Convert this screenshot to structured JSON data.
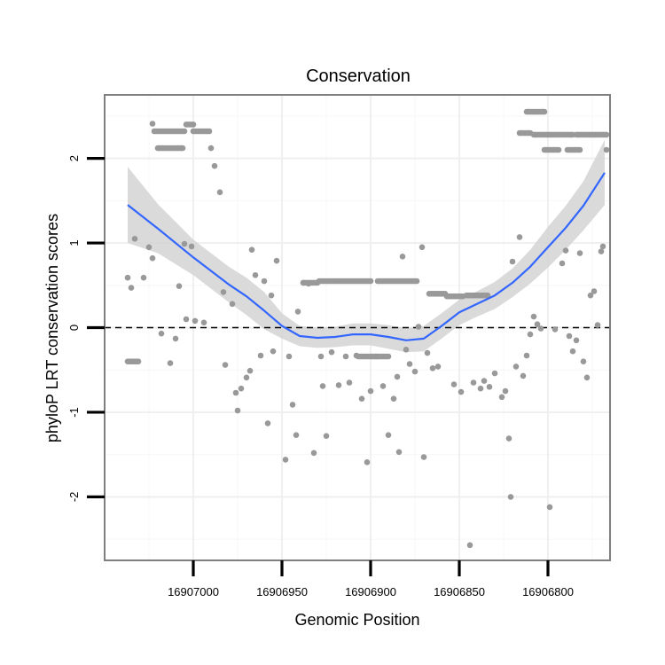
{
  "chart_data": {
    "type": "scatter",
    "title": "Conservation",
    "xlabel": "Genomic Position",
    "ylabel": "phyloP LRT conservation scores",
    "x_reversed": true,
    "xlim": [
      16907050,
      16906765
    ],
    "ylim": [
      -2.75,
      2.75
    ],
    "x_ticks": [
      16907000,
      16906950,
      16906900,
      16906850,
      16906800
    ],
    "x_tick_labels": [
      "16907000",
      "16906950",
      "16906900",
      "16906850",
      "16906800"
    ],
    "y_ticks": [
      -2,
      -1,
      0,
      1,
      2
    ],
    "y_tick_labels": [
      "-2",
      "-1",
      "0",
      "1",
      "2"
    ],
    "reference_line": {
      "y": 0,
      "style": "dashed"
    },
    "colors": {
      "points": "#999999",
      "smooth_line": "#3366ff",
      "ribbon": "#d3d3d3",
      "panel_border": "#7f7f7f",
      "grid": "#f0f0f0"
    },
    "points": [
      [
        16907037,
        0.59
      ],
      [
        16907035,
        0.47
      ],
      [
        16907033,
        1.05
      ],
      [
        16907028,
        0.59
      ],
      [
        16907025,
        0.95
      ],
      [
        16907023,
        0.82
      ],
      [
        16907018,
        -0.07
      ],
      [
        16907013,
        -0.42
      ],
      [
        16907010,
        -0.13
      ],
      [
        16907008,
        0.49
      ],
      [
        16907005,
        0.99
      ],
      [
        16907004,
        0.1
      ],
      [
        16907001,
        0.96
      ],
      [
        16906999,
        0.08
      ],
      [
        16906994,
        0.06
      ],
      [
        16906990,
        2.12
      ],
      [
        16906988,
        1.91
      ],
      [
        16906985,
        1.6
      ],
      [
        16906983,
        0.42
      ],
      [
        16906982,
        -0.44
      ],
      [
        16906978,
        0.28
      ],
      [
        16906976,
        -0.77
      ],
      [
        16906975,
        -0.98
      ],
      [
        16906973,
        -0.72
      ],
      [
        16906970,
        -0.59
      ],
      [
        16906968,
        -0.51
      ],
      [
        16906967,
        0.92
      ],
      [
        16906965,
        0.62
      ],
      [
        16906962,
        -0.33
      ],
      [
        16906960,
        0.55
      ],
      [
        16906958,
        -1.13
      ],
      [
        16906956,
        0.38
      ],
      [
        16906955,
        -0.28
      ],
      [
        16906953,
        0.79
      ],
      [
        16906948,
        -1.56
      ],
      [
        16906946,
        -0.34
      ],
      [
        16906944,
        -0.91
      ],
      [
        16906942,
        -1.27
      ],
      [
        16906941,
        0.19
      ],
      [
        16906938,
        0.53
      ],
      [
        16906935,
        0.52
      ],
      [
        16906932,
        -1.48
      ],
      [
        16906928,
        -0.34
      ],
      [
        16906927,
        -0.69
      ],
      [
        16906925,
        -1.28
      ],
      [
        16906922,
        -0.29
      ],
      [
        16906918,
        -0.68
      ],
      [
        16906914,
        -0.34
      ],
      [
        16906912,
        -0.65
      ],
      [
        16906908,
        -0.33
      ],
      [
        16906905,
        -0.84
      ],
      [
        16906902,
        -1.59
      ],
      [
        16906900,
        -0.75
      ],
      [
        16906897,
        -0.34
      ],
      [
        16906893,
        -0.69
      ],
      [
        16906890,
        -1.27
      ],
      [
        16906887,
        -0.84
      ],
      [
        16906885,
        -0.58
      ],
      [
        16906884,
        -1.47
      ],
      [
        16906882,
        0.84
      ],
      [
        16906880,
        -0.26
      ],
      [
        16906878,
        -0.43
      ],
      [
        16906875,
        -0.52
      ],
      [
        16906873,
        0.01
      ],
      [
        16906871,
        0.95
      ],
      [
        16906870,
        -1.53
      ],
      [
        16906868,
        -0.3
      ],
      [
        16906865,
        -0.48
      ],
      [
        16906862,
        -0.46
      ],
      [
        16906853,
        -0.67
      ],
      [
        16906849,
        -0.76
      ],
      [
        16906844,
        -2.57
      ],
      [
        16906842,
        -0.65
      ],
      [
        16906838,
        -0.72
      ],
      [
        16906836,
        -0.63
      ],
      [
        16906833,
        -0.7
      ],
      [
        16906830,
        -0.54
      ],
      [
        16906826,
        -0.82
      ],
      [
        16906824,
        -0.75
      ],
      [
        16906822,
        -1.31
      ],
      [
        16906821,
        -2.0
      ],
      [
        16906820,
        0.78
      ],
      [
        16906818,
        -0.46
      ],
      [
        16906816,
        1.07
      ],
      [
        16906814,
        -0.57
      ],
      [
        16906812,
        -0.33
      ],
      [
        16906810,
        -0.08
      ],
      [
        16906808,
        0.13
      ],
      [
        16906806,
        0.04
      ],
      [
        16906804,
        -0.01
      ],
      [
        16906799,
        -2.12
      ],
      [
        16906796,
        -0.02
      ],
      [
        16906792,
        0.76
      ],
      [
        16906790,
        0.91
      ],
      [
        16906788,
        -0.1
      ],
      [
        16906786,
        -0.28
      ],
      [
        16906784,
        -0.15
      ],
      [
        16906782,
        0.88
      ],
      [
        16906780,
        -0.4
      ],
      [
        16906778,
        -0.59
      ],
      [
        16906776,
        0.38
      ],
      [
        16906774,
        0.43
      ],
      [
        16906772,
        0.03
      ],
      [
        16906770,
        0.9
      ],
      [
        16906769,
        0.96
      ],
      [
        16906767,
        2.1
      ]
    ],
    "point_runs": [
      {
        "y": 2.41,
        "x_from": 16907023,
        "x_to": 16907023
      },
      {
        "y": 2.32,
        "x_from": 16907022,
        "x_to": 16907005
      },
      {
        "y": 2.4,
        "x_from": 16907004,
        "x_to": 16907000
      },
      {
        "y": 2.32,
        "x_from": 16907000,
        "x_to": 16906991
      },
      {
        "y": 2.12,
        "x_from": 16907020,
        "x_to": 16907006
      },
      {
        "y": -0.4,
        "x_from": 16907037,
        "x_to": 16907031
      },
      {
        "y": 0.53,
        "x_from": 16906938,
        "x_to": 16906930
      },
      {
        "y": 0.55,
        "x_from": 16906929,
        "x_to": 16906900
      },
      {
        "y": 0.55,
        "x_from": 16906896,
        "x_to": 16906874
      },
      {
        "y": 0.4,
        "x_from": 16906867,
        "x_to": 16906858
      },
      {
        "y": 0.37,
        "x_from": 16906857,
        "x_to": 16906848
      },
      {
        "y": 0.38,
        "x_from": 16906846,
        "x_to": 16906834
      },
      {
        "y": -0.34,
        "x_from": 16906907,
        "x_to": 16906890
      },
      {
        "y": 2.55,
        "x_from": 16906812,
        "x_to": 16906802
      },
      {
        "y": 2.3,
        "x_from": 16906816,
        "x_to": 16906810
      },
      {
        "y": 2.28,
        "x_from": 16906808,
        "x_to": 16906786
      },
      {
        "y": 2.28,
        "x_from": 16906784,
        "x_to": 16906767
      },
      {
        "y": 2.1,
        "x_from": 16906802,
        "x_to": 16906794
      },
      {
        "y": 2.1,
        "x_from": 16906789,
        "x_to": 16906782
      }
    ],
    "smooth_fit": {
      "x": [
        16907037,
        16907020,
        16907000,
        16906980,
        16906970,
        16906960,
        16906950,
        16906940,
        16906930,
        16906920,
        16906910,
        16906900,
        16906890,
        16906880,
        16906870,
        16906860,
        16906850,
        16906840,
        16906830,
        16906820,
        16906810,
        16906800,
        16906790,
        16906780,
        16906768
      ],
      "y": [
        1.45,
        1.17,
        0.83,
        0.51,
        0.37,
        0.2,
        0.02,
        -0.1,
        -0.12,
        -0.11,
        -0.08,
        -0.08,
        -0.11,
        -0.15,
        -0.13,
        0.02,
        0.18,
        0.28,
        0.38,
        0.53,
        0.72,
        0.95,
        1.18,
        1.44,
        1.83
      ],
      "lower": [
        1.0,
        0.88,
        0.62,
        0.3,
        0.15,
        -0.02,
        -0.13,
        -0.22,
        -0.24,
        -0.23,
        -0.21,
        -0.21,
        -0.25,
        -0.29,
        -0.28,
        -0.13,
        0.03,
        0.13,
        0.22,
        0.36,
        0.52,
        0.71,
        0.92,
        1.15,
        1.45
      ],
      "upper": [
        1.9,
        1.46,
        1.04,
        0.72,
        0.59,
        0.42,
        0.17,
        0.02,
        0.0,
        0.01,
        0.05,
        0.05,
        0.03,
        -0.01,
        0.02,
        0.17,
        0.33,
        0.43,
        0.54,
        0.7,
        0.92,
        1.19,
        1.44,
        1.73,
        2.22
      ]
    }
  }
}
